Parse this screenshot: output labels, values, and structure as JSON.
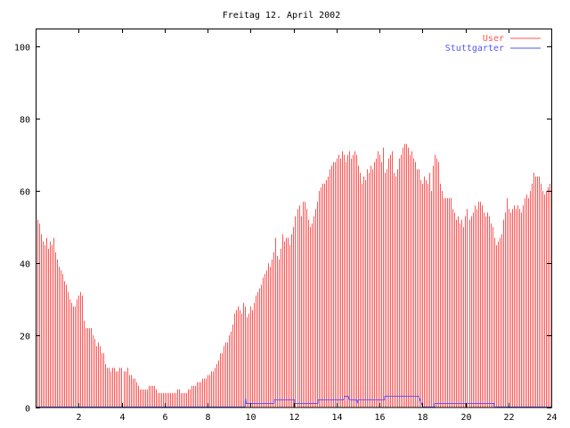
{
  "chart_data": {
    "type": "bar",
    "title": "Freitag 12. April 2002",
    "xlabel": "",
    "ylabel": "",
    "xlim": [
      0,
      24
    ],
    "ylim": [
      0,
      105
    ],
    "grid": false,
    "legend_position": "top-right",
    "x_ticks": [
      "2",
      "4",
      "6",
      "8",
      "10",
      "12",
      "14",
      "16",
      "18",
      "20",
      "22",
      "24"
    ],
    "y_ticks": [
      "0",
      "20",
      "40",
      "60",
      "80",
      "100"
    ],
    "series": [
      {
        "name": "User",
        "style": "impulses",
        "color": "#ff5555",
        "sample_interval_hours": 0.08333,
        "values": [
          54,
          52,
          51,
          48,
          46,
          45,
          47,
          44,
          46,
          45,
          47,
          43,
          41,
          39,
          38,
          37,
          35,
          34,
          32,
          30,
          29,
          28,
          28,
          30,
          31,
          32,
          31,
          24,
          22,
          22,
          22,
          22,
          20,
          19,
          17,
          18,
          17,
          15,
          15,
          12,
          11,
          11,
          10,
          11,
          11,
          10,
          10,
          11,
          11,
          10,
          10,
          11,
          9,
          9,
          8,
          8,
          7,
          6,
          5,
          5,
          5,
          5,
          5,
          6,
          6,
          6,
          6,
          5,
          4,
          4,
          4,
          4,
          4,
          4,
          4,
          4,
          4,
          4,
          4,
          5,
          5,
          4,
          4,
          4,
          4,
          5,
          5,
          6,
          6,
          6,
          7,
          7,
          7,
          8,
          8,
          8,
          9,
          9,
          10,
          10,
          11,
          12,
          13,
          15,
          15,
          17,
          18,
          18,
          20,
          21,
          23,
          26,
          27,
          28,
          27,
          26,
          29,
          28,
          25,
          26,
          28,
          27,
          29,
          31,
          32,
          33,
          34,
          36,
          37,
          38,
          40,
          39,
          41,
          43,
          47,
          42,
          41,
          44,
          48,
          46,
          47,
          47,
          45,
          48,
          50,
          53,
          55,
          56,
          53,
          57,
          57,
          55,
          52,
          50,
          51,
          53,
          55,
          57,
          60,
          61,
          62,
          62,
          63,
          64,
          66,
          67,
          68,
          68,
          69,
          70,
          69,
          71,
          70,
          68,
          70,
          71,
          69,
          70,
          71,
          70,
          67,
          65,
          62,
          64,
          63,
          66,
          65,
          67,
          66,
          68,
          69,
          71,
          70,
          68,
          72,
          65,
          66,
          69,
          70,
          71,
          65,
          64,
          66,
          69,
          70,
          72,
          73,
          73,
          72,
          70,
          71,
          69,
          68,
          66,
          66,
          63,
          62,
          64,
          63,
          62,
          65,
          60,
          67,
          70,
          69,
          68,
          62,
          60,
          58,
          58,
          58,
          58,
          58,
          55,
          54,
          52,
          53,
          51,
          52,
          50,
          53,
          55,
          52,
          53,
          54,
          56,
          55,
          57,
          57,
          56,
          54,
          53,
          54,
          53,
          51,
          50,
          47,
          45,
          46,
          47,
          48,
          52,
          54,
          58,
          55,
          54,
          55,
          56,
          55,
          56,
          55,
          54,
          56,
          58,
          59,
          58,
          60,
          62,
          65,
          64,
          64,
          64,
          62,
          60,
          59,
          60,
          61,
          62
        ]
      },
      {
        "name": "Stuttgarter",
        "style": "steps",
        "color": "#5555ff",
        "points": [
          [
            0,
            0
          ],
          [
            9.74,
            0
          ],
          [
            9.76,
            2.5
          ],
          [
            9.8,
            1
          ],
          [
            11.1,
            1
          ],
          [
            11.1,
            2
          ],
          [
            12.06,
            2
          ],
          [
            12.06,
            1
          ],
          [
            13.14,
            1
          ],
          [
            13.14,
            2
          ],
          [
            14.34,
            2
          ],
          [
            14.38,
            3
          ],
          [
            14.55,
            3
          ],
          [
            14.6,
            2
          ],
          [
            14.92,
            2
          ],
          [
            14.96,
            1
          ],
          [
            15.0,
            2
          ],
          [
            16.25,
            2
          ],
          [
            16.25,
            3
          ],
          [
            17.82,
            3
          ],
          [
            18.03,
            0
          ],
          [
            18.57,
            0
          ],
          [
            18.57,
            1
          ],
          [
            21.34,
            1
          ],
          [
            21.36,
            0
          ],
          [
            24,
            0
          ]
        ]
      }
    ]
  }
}
